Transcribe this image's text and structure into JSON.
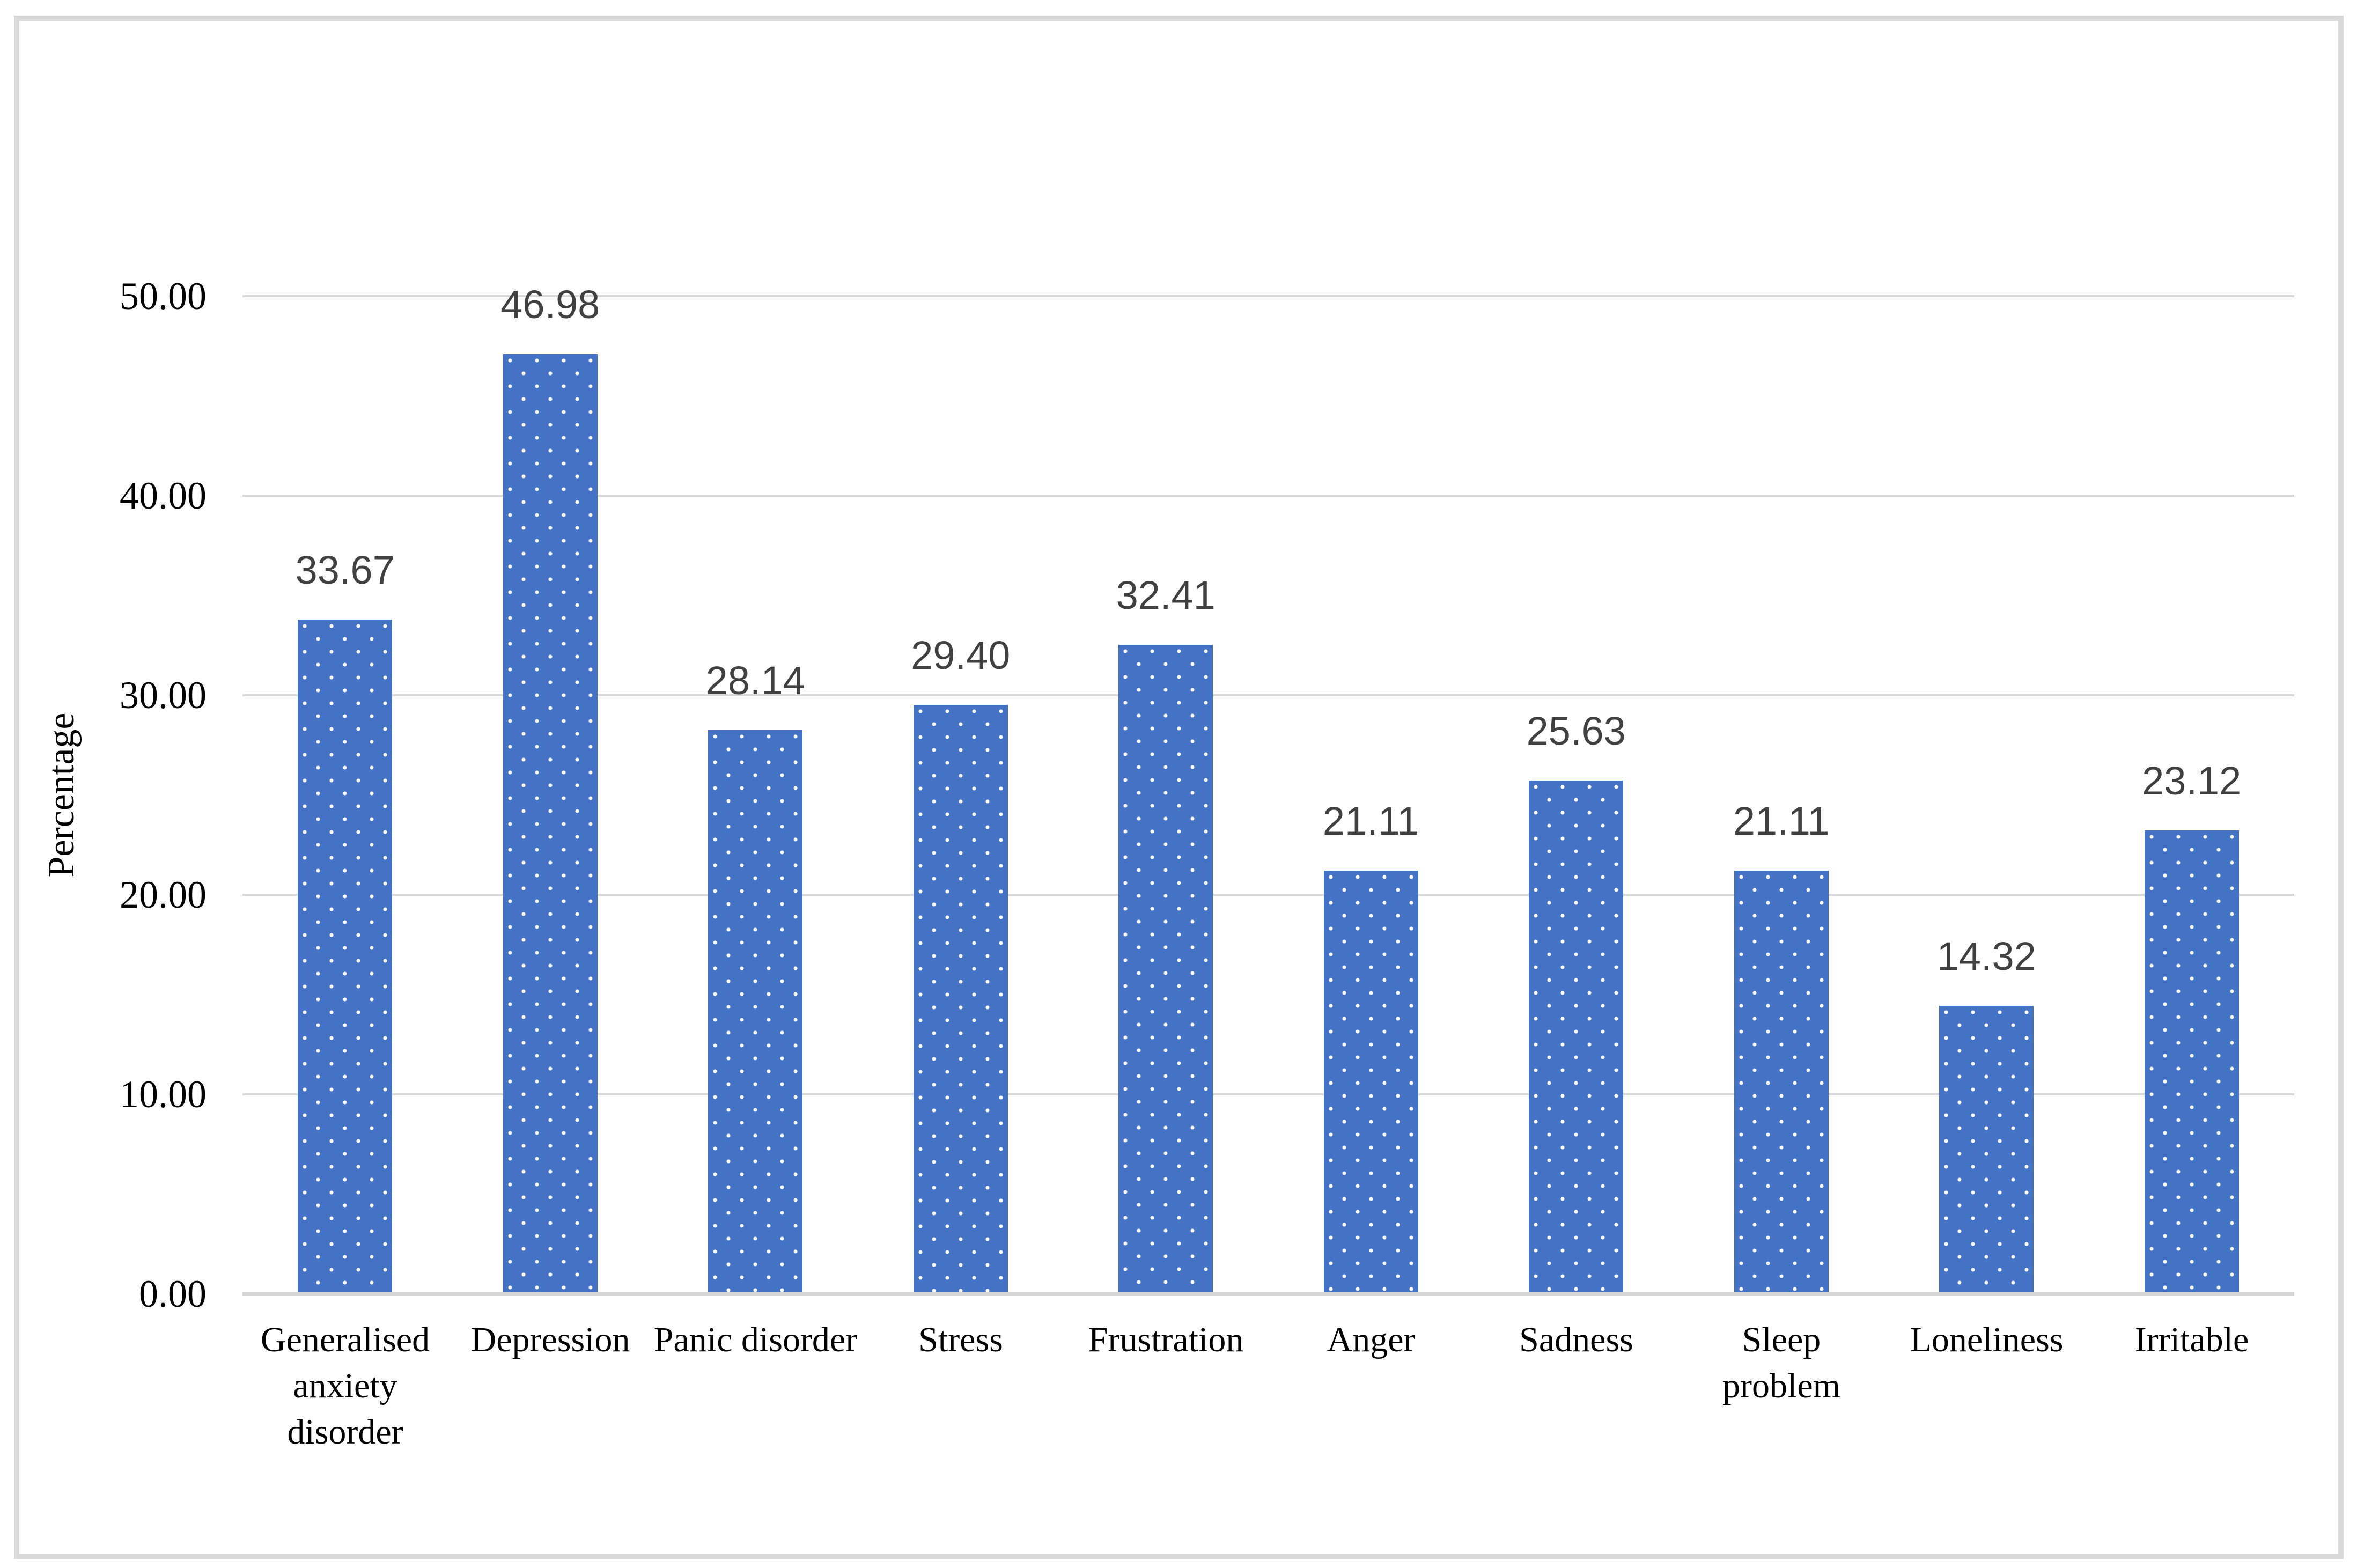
{
  "chart_data": {
    "type": "bar",
    "title": "",
    "categories": [
      "Generalised anxiety disorder",
      "Depression",
      "Panic disorder",
      "Stress",
      "Frustration",
      "Anger",
      "Sadness",
      "Sleep problem",
      "Loneliness",
      "Irritable"
    ],
    "values": [
      33.67,
      46.98,
      28.14,
      29.4,
      32.41,
      21.11,
      25.63,
      21.11,
      14.32,
      23.12
    ],
    "data_labels": [
      "33.67",
      "46.98",
      "28.14",
      "29.40",
      "32.41",
      "21.11",
      "25.63",
      "21.11",
      "14.32",
      "23.12"
    ],
    "xlabel": "",
    "ylabel": "Percentage",
    "ylim": [
      0,
      50
    ],
    "ytick_labels": [
      "0.00",
      "10.00",
      "20.00",
      "30.00",
      "40.00",
      "50.00"
    ],
    "ytick_step": 10,
    "grid": true,
    "legend": "none",
    "bar_pattern": "white-dots",
    "colors": {
      "bar": "#4472C4",
      "pattern_dot": "#FFFFFF",
      "gridline": "#D9D9D9",
      "axis_line": "#D6D6D6",
      "data_label": "#404040",
      "axis_text": "#000000",
      "frame_border": "#D9D9D9",
      "background": "#FFFFFF"
    }
  }
}
